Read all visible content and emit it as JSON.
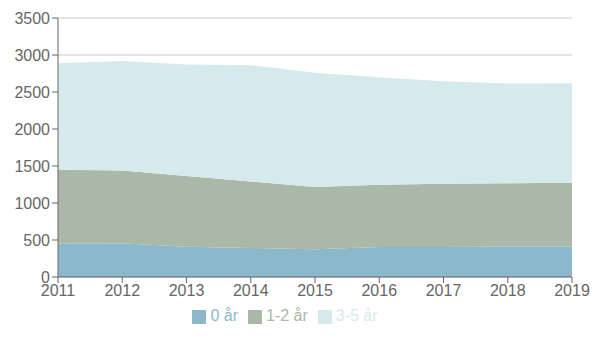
{
  "chart_data": {
    "type": "area",
    "stacked": true,
    "x": [
      2011,
      2012,
      2013,
      2014,
      2015,
      2016,
      2017,
      2018,
      2019
    ],
    "series": [
      {
        "name": "0 år",
        "color": "#8cb8cc",
        "values": [
          448,
          456,
          410,
          392,
          374,
          406,
          405,
          411,
          411
        ]
      },
      {
        "name": "1-2 år",
        "color": "#aab8a8",
        "values": [
          1002,
          983,
          956,
          898,
          842,
          841,
          855,
          855,
          862
        ]
      },
      {
        "name": "3-5 år",
        "color": "#d5eaed",
        "values": [
          1437,
          1479,
          1507,
          1572,
          1545,
          1453,
          1385,
          1349,
          1345
        ]
      }
    ],
    "xlim": [
      2011,
      2019
    ],
    "xticks": [
      2011,
      2012,
      2013,
      2014,
      2015,
      2016,
      2017,
      2018,
      2019
    ],
    "ylim": [
      0,
      3500
    ],
    "yticks": [
      0,
      500,
      1000,
      1500,
      2000,
      2500,
      3000,
      3500
    ],
    "grid": true,
    "legend": "bottom"
  }
}
